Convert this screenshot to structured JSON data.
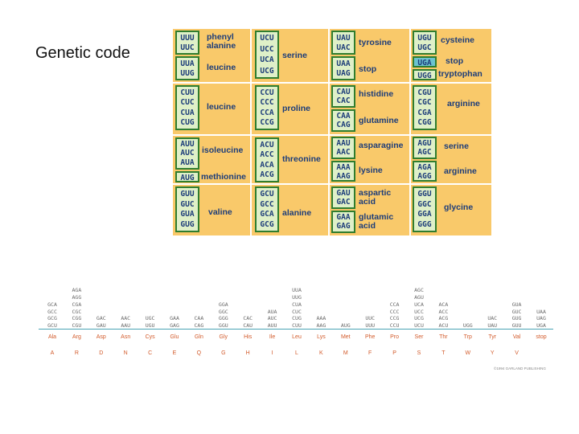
{
  "title": "Genetic code",
  "codon_table": {
    "cells": [
      {
        "codons": [
          "UUU",
          "UUC"
        ],
        "aa": "phenyl alanine"
      },
      {
        "codons": [
          "UUA",
          "UUG"
        ],
        "aa": "leucine"
      },
      {
        "codons": [
          "CUU",
          "CUC",
          "CUA",
          "CUG"
        ],
        "aa": "leucine"
      },
      {
        "codons": [
          "AUU",
          "AUC",
          "AUA"
        ],
        "aa": "isoleucine"
      },
      {
        "codons": [
          "AUG"
        ],
        "aa": "methionine"
      },
      {
        "codons": [
          "GUU",
          "GUC",
          "GUA",
          "GUG"
        ],
        "aa": "valine"
      },
      {
        "codons": [
          "UCU",
          "UCC",
          "UCA",
          "UCG"
        ],
        "aa": "serine"
      },
      {
        "codons": [
          "CCU",
          "CCC",
          "CCA",
          "CCG"
        ],
        "aa": "proline"
      },
      {
        "codons": [
          "ACU",
          "ACC",
          "ACA",
          "ACG"
        ],
        "aa": "threonine"
      },
      {
        "codons": [
          "GCU",
          "GCC",
          "GCA",
          "GCG"
        ],
        "aa": "alanine"
      },
      {
        "codons": [
          "UAU",
          "UAC"
        ],
        "aa": "tyrosine"
      },
      {
        "codons": [
          "UAA",
          "UAG"
        ],
        "aa": "stop"
      },
      {
        "codons": [
          "CAU",
          "CAC"
        ],
        "aa": "histidine"
      },
      {
        "codons": [
          "CAA",
          "CAG"
        ],
        "aa": "glutamine"
      },
      {
        "codons": [
          "AAU",
          "AAC"
        ],
        "aa": "asparagine"
      },
      {
        "codons": [
          "AAA",
          "AAG"
        ],
        "aa": "lysine"
      },
      {
        "codons": [
          "GAU",
          "GAC"
        ],
        "aa": "aspartic acid"
      },
      {
        "codons": [
          "GAA",
          "GAG"
        ],
        "aa": "glutamic acid"
      },
      {
        "codons": [
          "UGU",
          "UGC"
        ],
        "aa": "cysteine"
      },
      {
        "codons": [
          "UGA"
        ],
        "aa": "stop"
      },
      {
        "codons": [
          "UGG"
        ],
        "aa": "tryptophan"
      },
      {
        "codons": [
          "CGU",
          "CGC",
          "CGA",
          "CGG"
        ],
        "aa": "arginine"
      },
      {
        "codons": [
          "AGU",
          "AGC"
        ],
        "aa": "serine"
      },
      {
        "codons": [
          "AGA",
          "AGG"
        ],
        "aa": "arginine"
      },
      {
        "codons": [
          "GGU",
          "GGC",
          "GGA",
          "GGG"
        ],
        "aa": "glycine"
      }
    ]
  },
  "amino_acid_table": {
    "columns": [
      {
        "codons": [
          "GCA",
          "GCC",
          "GCG",
          "GCU"
        ],
        "aa3": "Ala",
        "aa1": "A"
      },
      {
        "codons": [
          "AGA",
          "AGG",
          "CGA",
          "CGC",
          "CGG",
          "CGU"
        ],
        "aa3": "Arg",
        "aa1": "R"
      },
      {
        "codons": [
          "GAC",
          "GAU"
        ],
        "aa3": "Asp",
        "aa1": "D"
      },
      {
        "codons": [
          "AAC",
          "AAU"
        ],
        "aa3": "Asn",
        "aa1": "N"
      },
      {
        "codons": [
          "UGC",
          "UGU"
        ],
        "aa3": "Cys",
        "aa1": "C"
      },
      {
        "codons": [
          "GAA",
          "GAG"
        ],
        "aa3": "Glu",
        "aa1": "E"
      },
      {
        "codons": [
          "CAA",
          "CAG"
        ],
        "aa3": "Gln",
        "aa1": "Q"
      },
      {
        "codons": [
          "GGA",
          "GGC",
          "GGG",
          "GGU"
        ],
        "aa3": "Gly",
        "aa1": "G"
      },
      {
        "codons": [
          "CAC",
          "CAU"
        ],
        "aa3": "His",
        "aa1": "H"
      },
      {
        "codons": [
          "AUA",
          "AUC",
          "AUU"
        ],
        "aa3": "Ile",
        "aa1": "I"
      },
      {
        "codons": [
          "UUA",
          "UUG",
          "CUA",
          "CUC",
          "CUG",
          "CUU"
        ],
        "aa3": "Leu",
        "aa1": "L"
      },
      {
        "codons": [
          "AAA",
          "AAG"
        ],
        "aa3": "Lys",
        "aa1": "K"
      },
      {
        "codons": [
          "AUG"
        ],
        "aa3": "Met",
        "aa1": "M"
      },
      {
        "codons": [
          "UUC",
          "UUU"
        ],
        "aa3": "Phe",
        "aa1": "F"
      },
      {
        "codons": [
          "CCA",
          "CCC",
          "CCG",
          "CCU"
        ],
        "aa3": "Pro",
        "aa1": "P"
      },
      {
        "codons": [
          "AGC",
          "AGU",
          "UCA",
          "UCC",
          "UCG",
          "UCU"
        ],
        "aa3": "Ser",
        "aa1": "S"
      },
      {
        "codons": [
          "ACA",
          "ACC",
          "ACG",
          "ACU"
        ],
        "aa3": "Thr",
        "aa1": "T"
      },
      {
        "codons": [
          "UGG"
        ],
        "aa3": "Trp",
        "aa1": "W"
      },
      {
        "codons": [
          "UAC",
          "UAU"
        ],
        "aa3": "Tyr",
        "aa1": "Y"
      },
      {
        "codons": [
          "GUA",
          "GUC",
          "GUG",
          "GUU"
        ],
        "aa3": "Val",
        "aa1": "V"
      },
      {
        "codons": [
          "UAA",
          "UAG",
          "UGA"
        ],
        "aa3": "stop",
        "aa1": ""
      }
    ]
  },
  "copyright": "©1994 GARLAND PUBLISHING"
}
